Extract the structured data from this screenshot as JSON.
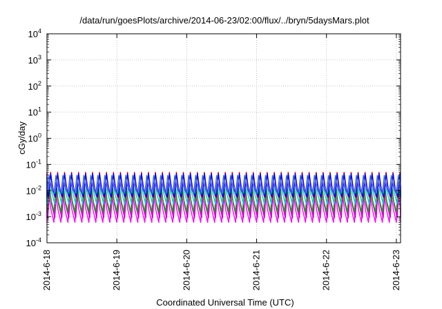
{
  "chart_data": {
    "type": "line",
    "title": "/data/run/goesPlots/archive/2014-06-23/02:00/flux/../bryn/5daysMars.plot",
    "xlabel": "Coordinated Universal Time (UTC)",
    "ylabel": "cGy/day",
    "yscale": "log",
    "ylim": [
      0.0001,
      10000
    ],
    "xlim_days": [
      0,
      5.06
    ],
    "x_tick_labels": [
      "2014-6-18",
      "2014-6-19",
      "2014-6-20",
      "2014-6-21",
      "2014-6-22",
      "2014-6-23"
    ],
    "y_tick_labels": [
      {
        "base": "10",
        "exp": "-4"
      },
      {
        "base": "10",
        "exp": "-3"
      },
      {
        "base": "10",
        "exp": "-2"
      },
      {
        "base": "10",
        "exp": "-1"
      },
      {
        "base": "10",
        "exp": "0"
      },
      {
        "base": "10",
        "exp": "1"
      },
      {
        "base": "10",
        "exp": "2"
      },
      {
        "base": "10",
        "exp": "3"
      },
      {
        "base": "10",
        "exp": "4"
      }
    ],
    "grid": true,
    "legend": "none",
    "pattern": {
      "cycles_per_day": 10,
      "note_shape": "sawtooth"
    },
    "series": [
      {
        "color": "#ff00ff",
        "peak": 0.0085,
        "trough": 0.0006
      },
      {
        "color": "#cc00cc",
        "peak": 0.012,
        "trough": 0.0009
      },
      {
        "color": "#ff0000",
        "peak": 0.05,
        "trough": 0.004
      },
      {
        "color": "#00aa00",
        "peak": 0.02,
        "trough": 0.0015
      },
      {
        "color": "#00cccc",
        "peak": 0.032,
        "trough": 0.003
      },
      {
        "color": "#0000ff",
        "peak": 0.045,
        "trough": 0.0055
      },
      {
        "color": "#3366cc",
        "peak": 0.038,
        "trough": 0.007
      },
      {
        "color": "#6666ff",
        "peak": 0.025,
        "trough": 0.009
      }
    ]
  }
}
